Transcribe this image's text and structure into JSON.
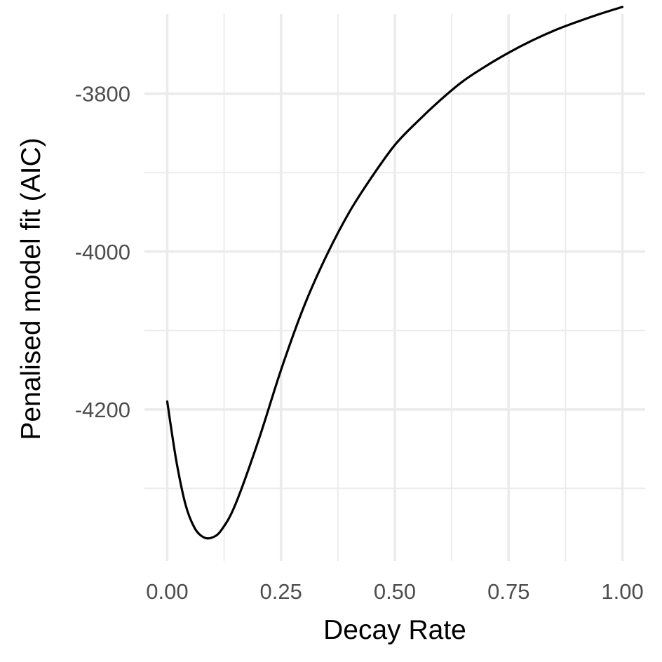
{
  "chart_data": {
    "type": "line",
    "title": "",
    "xlabel": "Decay Rate",
    "ylabel": "Penalised model fit (AIC)",
    "xlim": [
      -0.05,
      1.05
    ],
    "ylim": [
      -4392,
      -3699
    ],
    "x_ticks": [
      0.0,
      0.25,
      0.5,
      0.75,
      1.0
    ],
    "x_tick_labels": [
      "0.00",
      "0.25",
      "0.50",
      "0.75",
      "1.00"
    ],
    "x_minor_ticks": [
      0.125,
      0.375,
      0.625,
      0.875
    ],
    "y_ticks": [
      -4200,
      -4000,
      -3800
    ],
    "y_tick_labels": [
      "-4200",
      "-4000",
      "-3800"
    ],
    "y_minor_ticks": [
      -4300,
      -4100,
      -3900
    ],
    "grid": true,
    "legend": "none",
    "line_color": "#000000",
    "grid_color": "#ebebeb",
    "series": [
      {
        "x": [
          0.0,
          0.02,
          0.04,
          0.06,
          0.08,
          0.1,
          0.12,
          0.15,
          0.2,
          0.25,
          0.3,
          0.35,
          0.4,
          0.45,
          0.5,
          0.55,
          0.6,
          0.65,
          0.7,
          0.75,
          0.8,
          0.85,
          0.9,
          0.95,
          1.0
        ],
        "y": [
          -4190,
          -4265,
          -4320,
          -4350,
          -4362,
          -4362,
          -4352,
          -4320,
          -4240,
          -4150,
          -4070,
          -4005,
          -3950,
          -3905,
          -3865,
          -3835,
          -3808,
          -3784,
          -3765,
          -3748,
          -3733,
          -3720,
          -3709,
          -3699,
          -3690
        ]
      }
    ]
  }
}
